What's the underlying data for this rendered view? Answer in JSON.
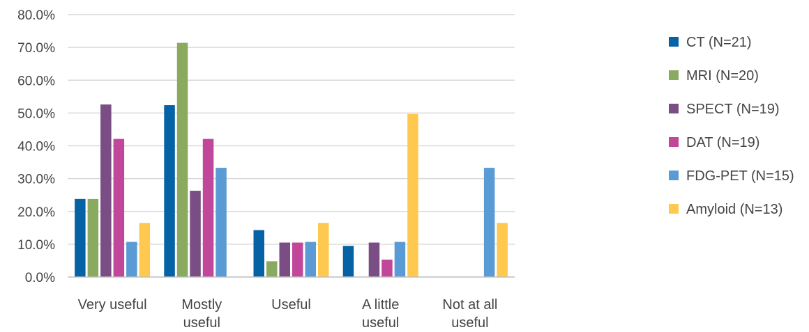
{
  "chart_data": {
    "type": "bar",
    "categories": [
      [
        "Very useful"
      ],
      [
        "Mostly",
        "useful"
      ],
      [
        "Useful"
      ],
      [
        "A little",
        "useful"
      ],
      [
        "Not at all",
        "useful"
      ]
    ],
    "series": [
      {
        "name": "CT (N=21)",
        "color": "#0563a5",
        "values": [
          23.8,
          52.4,
          14.3,
          9.5,
          0
        ]
      },
      {
        "name": "MRI (N=20)",
        "color": "#8aaa60",
        "values": [
          23.8,
          71.4,
          4.8,
          0,
          0
        ]
      },
      {
        "name": "SPECT (N=19)",
        "color": "#7a4e85",
        "values": [
          52.6,
          26.3,
          10.5,
          10.5,
          0
        ]
      },
      {
        "name": "DAT (N=19)",
        "color": "#c0479a",
        "values": [
          42.1,
          42.1,
          10.5,
          5.3,
          0
        ]
      },
      {
        "name": "FDG-PET (N=15)",
        "color": "#5b9bd5",
        "values": [
          10.7,
          33.3,
          10.7,
          10.7,
          33.3
        ]
      },
      {
        "name": "Amyloid (N=13)",
        "color": "#ffc84f",
        "values": [
          16.5,
          0,
          16.5,
          49.7,
          16.5
        ]
      }
    ],
    "y_ticks": [
      "0.0%",
      "10.0%",
      "20.0%",
      "30.0%",
      "40.0%",
      "50.0%",
      "60.0%",
      "70.0%",
      "80.0%"
    ],
    "ylim": [
      0,
      80
    ],
    "grid": true,
    "legend_position": "right"
  }
}
